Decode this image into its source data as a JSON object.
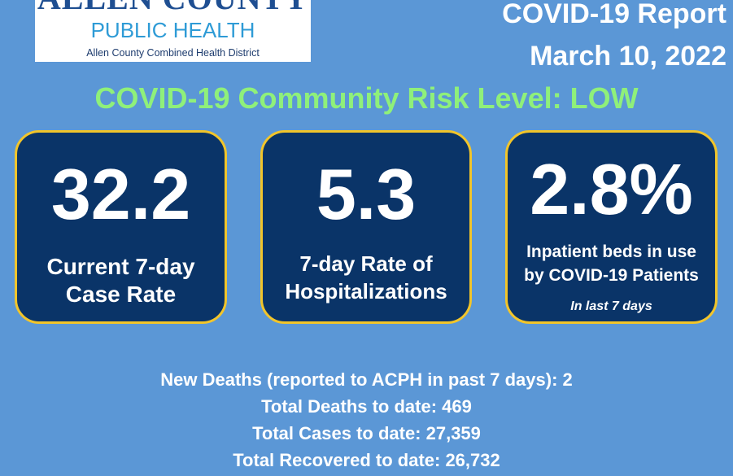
{
  "logo": {
    "org": "ALLEN COUNTY",
    "dept": "PUBLIC HEALTH",
    "subtitle": "Allen County Combined Health District"
  },
  "header": {
    "title": "COVID-19 Report",
    "date": "March 10, 2022"
  },
  "risk_level": "COVID-19 Community Risk Level: LOW",
  "cards": [
    {
      "value": "32.2",
      "label_line1": "Current 7-day",
      "label_line2": "Case Rate"
    },
    {
      "value": "5.3",
      "label_line1": "7-day Rate of",
      "label_line2": "Hospitalizations"
    },
    {
      "value": "2.8%",
      "label_line1": "Inpatient beds in use",
      "label_line2": "by COVID-19 Patients",
      "note": "In last  7 days"
    }
  ],
  "stats": [
    "New Deaths (reported to ACPH in past 7 days): 2",
    "Total Deaths to date: 469",
    "Total Cases to date: 27,359",
    "Total Recovered to date: 26,732"
  ],
  "colors": {
    "background": "#5b97d6",
    "card": "#0a3468",
    "card_border": "#f2c52a",
    "risk_text": "#8ff07a"
  }
}
